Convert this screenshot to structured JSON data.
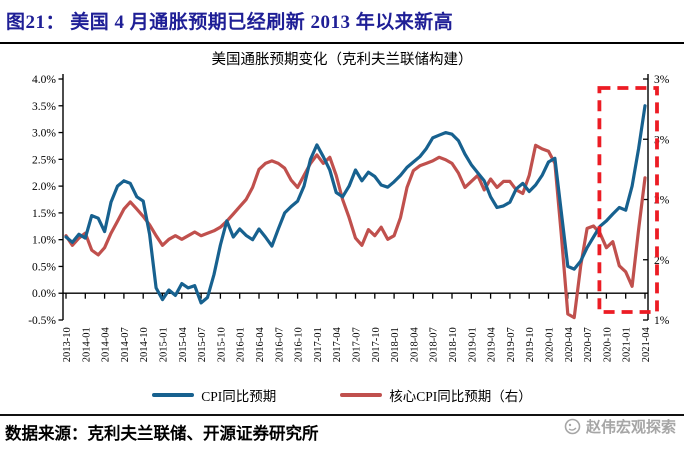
{
  "header": {
    "title": "图21：  美国 4 月通胀预期已经刷新 2013 年以来新高"
  },
  "chart_data": {
    "type": "line",
    "title": "美国通胀预期变化（克利夫兰联储构建）",
    "x_tick_labels": [
      "2013-10",
      "2014-01",
      "2014-04",
      "2014-07",
      "2014-10",
      "2015-01",
      "2015-04",
      "2015-07",
      "2015-10",
      "2016-01",
      "2016-04",
      "2016-07",
      "2016-10",
      "2017-01",
      "2017-04",
      "2017-07",
      "2017-10",
      "2018-01",
      "2018-04",
      "2018-07",
      "2018-10",
      "2019-01",
      "2019-04",
      "2019-07",
      "2019-10",
      "2020-01",
      "2020-04",
      "2020-07",
      "2020-10",
      "2021-01",
      "2021-04"
    ],
    "points_per_tick": 3,
    "left_axis": {
      "min": -0.5,
      "max": 4.0,
      "tick_labels": [
        "4.0%",
        "3.5%",
        "3.0%",
        "2.5%",
        "2.0%",
        "1.5%",
        "1.0%",
        "0.5%",
        "0.0%",
        "-0.5%"
      ]
    },
    "right_axis": {
      "min": 1.0,
      "max": 3.0,
      "tick_labels": [
        "3%",
        "3%",
        "2%",
        "2%",
        "1%"
      ]
    },
    "grid": false,
    "legend_position": "bottom",
    "series": [
      {
        "name": "核心CPI同比预期（右）",
        "axis": "right",
        "color": "#c0504d",
        "values": [
          1.7,
          1.62,
          1.68,
          1.72,
          1.58,
          1.54,
          1.6,
          1.72,
          1.82,
          1.92,
          1.98,
          1.92,
          1.86,
          1.79,
          1.7,
          1.62,
          1.67,
          1.7,
          1.67,
          1.7,
          1.73,
          1.7,
          1.72,
          1.74,
          1.77,
          1.82,
          1.88,
          1.94,
          2.0,
          2.1,
          2.25,
          2.3,
          2.32,
          2.3,
          2.26,
          2.16,
          2.1,
          2.2,
          2.3,
          2.37,
          2.3,
          2.35,
          2.2,
          2.0,
          1.85,
          1.68,
          1.62,
          1.75,
          1.7,
          1.77,
          1.67,
          1.7,
          1.85,
          2.1,
          2.24,
          2.28,
          2.3,
          2.32,
          2.35,
          2.33,
          2.3,
          2.22,
          2.1,
          2.15,
          2.2,
          2.08,
          2.17,
          2.1,
          2.15,
          2.15,
          2.08,
          2.05,
          2.2,
          2.45,
          2.42,
          2.4,
          2.3,
          1.7,
          1.05,
          1.02,
          1.45,
          1.76,
          1.78,
          1.72,
          1.6,
          1.65,
          1.45,
          1.4,
          1.28,
          1.75,
          2.18
        ]
      },
      {
        "name": "CPI同比预期",
        "axis": "left",
        "color": "#17618f",
        "values": [
          1.05,
          0.95,
          1.1,
          1.03,
          1.45,
          1.4,
          1.15,
          1.7,
          2.0,
          2.1,
          2.05,
          1.8,
          1.72,
          1.1,
          0.1,
          -0.12,
          0.06,
          -0.04,
          0.18,
          0.1,
          0.14,
          -0.18,
          -0.08,
          0.35,
          0.9,
          1.35,
          1.05,
          1.2,
          1.08,
          1.0,
          1.2,
          1.05,
          0.88,
          1.2,
          1.5,
          1.62,
          1.72,
          2.0,
          2.5,
          2.77,
          2.55,
          2.3,
          1.88,
          1.8,
          2.0,
          2.3,
          2.1,
          2.26,
          2.18,
          2.02,
          1.98,
          2.08,
          2.2,
          2.35,
          2.45,
          2.55,
          2.7,
          2.9,
          2.95,
          3.0,
          2.97,
          2.85,
          2.6,
          2.4,
          2.25,
          2.1,
          1.8,
          1.6,
          1.63,
          1.7,
          1.95,
          2.05,
          1.9,
          2.02,
          2.2,
          2.45,
          2.52,
          1.5,
          0.5,
          0.45,
          0.6,
          0.85,
          1.05,
          1.25,
          1.35,
          1.48,
          1.6,
          1.55,
          2.0,
          2.7,
          3.5
        ]
      }
    ],
    "legend_order": [
      "CPI同比预期",
      "核心CPI同比预期（右）"
    ],
    "highlight_box": {
      "from_label": "2020-10",
      "to_label": "2021-04",
      "color": "#ec1c24"
    }
  },
  "footer": {
    "source": "数据来源：克利夫兰联储、开源证券研究所",
    "watermark": "赵伟宏观探索"
  },
  "colors": {
    "title": "#1f1f96",
    "cpi_line": "#17618f",
    "core_cpi_line": "#c0504d",
    "highlight": "#ec1c24",
    "axis": "#000000"
  }
}
